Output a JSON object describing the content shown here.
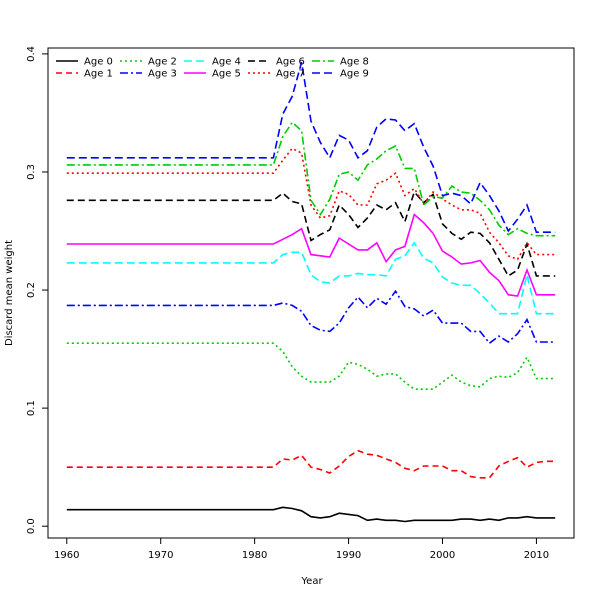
{
  "chart_data": {
    "type": "line",
    "title": "",
    "xlabel": "Year",
    "ylabel": "Discard mean weight",
    "xlim": [
      1958,
      2014
    ],
    "ylim": [
      -0.01,
      0.405
    ],
    "xticks": [
      1960,
      1970,
      1980,
      1990,
      2000,
      2010
    ],
    "xtick_labels": [
      "1960",
      "1970",
      "1980",
      "1990",
      "2000",
      "2010"
    ],
    "yticks": [
      0.0,
      0.1,
      0.2,
      0.3,
      0.4
    ],
    "ytick_labels": [
      "0.0",
      "0.1",
      "0.2",
      "0.3",
      "0.4"
    ],
    "grid": false,
    "legend_position": "top-left",
    "x": [
      1960,
      1961,
      1962,
      1963,
      1964,
      1965,
      1966,
      1967,
      1968,
      1969,
      1970,
      1971,
      1972,
      1973,
      1974,
      1975,
      1976,
      1977,
      1978,
      1979,
      1980,
      1981,
      1982,
      1983,
      1984,
      1985,
      1986,
      1987,
      1988,
      1989,
      1990,
      1991,
      1992,
      1993,
      1994,
      1995,
      1996,
      1997,
      1998,
      1999,
      2000,
      2001,
      2002,
      2003,
      2004,
      2005,
      2006,
      2007,
      2008,
      2009,
      2010,
      2011,
      2012
    ],
    "series": [
      {
        "name": "Age 0",
        "color": "#000000",
        "dash": "solid",
        "values": [
          0.014,
          0.014,
          0.014,
          0.014,
          0.014,
          0.014,
          0.014,
          0.014,
          0.014,
          0.014,
          0.014,
          0.014,
          0.014,
          0.014,
          0.014,
          0.014,
          0.014,
          0.014,
          0.014,
          0.014,
          0.014,
          0.014,
          0.014,
          0.016,
          0.015,
          0.013,
          0.008,
          0.007,
          0.008,
          0.011,
          0.01,
          0.009,
          0.005,
          0.006,
          0.005,
          0.005,
          0.004,
          0.005,
          0.005,
          0.005,
          0.005,
          0.005,
          0.006,
          0.006,
          0.005,
          0.006,
          0.005,
          0.007,
          0.007,
          0.008,
          0.007,
          0.007,
          0.007
        ]
      },
      {
        "name": "Age 1",
        "color": "#ff0000",
        "dash": "6,4",
        "values": [
          0.05,
          0.05,
          0.05,
          0.05,
          0.05,
          0.05,
          0.05,
          0.05,
          0.05,
          0.05,
          0.05,
          0.05,
          0.05,
          0.05,
          0.05,
          0.05,
          0.05,
          0.05,
          0.05,
          0.05,
          0.05,
          0.05,
          0.05,
          0.057,
          0.056,
          0.06,
          0.05,
          0.048,
          0.045,
          0.051,
          0.059,
          0.064,
          0.061,
          0.06,
          0.057,
          0.054,
          0.049,
          0.047,
          0.051,
          0.051,
          0.051,
          0.047,
          0.047,
          0.042,
          0.041,
          0.041,
          0.051,
          0.055,
          0.058,
          0.05,
          0.054,
          0.055,
          0.055
        ]
      },
      {
        "name": "Age 2",
        "color": "#00cd00",
        "dash": "2,3",
        "values": [
          0.155,
          0.155,
          0.155,
          0.155,
          0.155,
          0.155,
          0.155,
          0.155,
          0.155,
          0.155,
          0.155,
          0.155,
          0.155,
          0.155,
          0.155,
          0.155,
          0.155,
          0.155,
          0.155,
          0.155,
          0.155,
          0.155,
          0.155,
          0.148,
          0.135,
          0.127,
          0.122,
          0.122,
          0.122,
          0.127,
          0.139,
          0.137,
          0.133,
          0.127,
          0.129,
          0.129,
          0.122,
          0.116,
          0.116,
          0.116,
          0.122,
          0.128,
          0.122,
          0.119,
          0.118,
          0.125,
          0.127,
          0.126,
          0.13,
          0.143,
          0.125,
          0.125,
          0.125
        ]
      },
      {
        "name": "Age 3",
        "color": "#0000ff",
        "dash": "8,3,2,3",
        "values": [
          0.187,
          0.187,
          0.187,
          0.187,
          0.187,
          0.187,
          0.187,
          0.187,
          0.187,
          0.187,
          0.187,
          0.187,
          0.187,
          0.187,
          0.187,
          0.187,
          0.187,
          0.187,
          0.187,
          0.187,
          0.187,
          0.187,
          0.187,
          0.189,
          0.187,
          0.182,
          0.17,
          0.166,
          0.165,
          0.172,
          0.185,
          0.194,
          0.185,
          0.193,
          0.188,
          0.199,
          0.186,
          0.184,
          0.178,
          0.183,
          0.172,
          0.172,
          0.172,
          0.165,
          0.165,
          0.155,
          0.161,
          0.156,
          0.163,
          0.175,
          0.156,
          0.156,
          0.156
        ]
      },
      {
        "name": "Age 4",
        "color": "#00ffff",
        "dash": "8,4",
        "values": [
          0.223,
          0.223,
          0.223,
          0.223,
          0.223,
          0.223,
          0.223,
          0.223,
          0.223,
          0.223,
          0.223,
          0.223,
          0.223,
          0.223,
          0.223,
          0.223,
          0.223,
          0.223,
          0.223,
          0.223,
          0.223,
          0.223,
          0.223,
          0.23,
          0.232,
          0.232,
          0.213,
          0.207,
          0.206,
          0.212,
          0.212,
          0.214,
          0.213,
          0.213,
          0.212,
          0.226,
          0.229,
          0.24,
          0.227,
          0.223,
          0.211,
          0.206,
          0.204,
          0.204,
          0.197,
          0.189,
          0.18,
          0.18,
          0.18,
          0.213,
          0.18,
          0.18,
          0.18
        ]
      },
      {
        "name": "Age 5",
        "color": "#ff00ff",
        "dash": "solid",
        "values": [
          0.239,
          0.239,
          0.239,
          0.239,
          0.239,
          0.239,
          0.239,
          0.239,
          0.239,
          0.239,
          0.239,
          0.239,
          0.239,
          0.239,
          0.239,
          0.239,
          0.239,
          0.239,
          0.239,
          0.239,
          0.239,
          0.239,
          0.239,
          0.243,
          0.247,
          0.252,
          0.23,
          0.229,
          0.228,
          0.244,
          0.239,
          0.234,
          0.234,
          0.24,
          0.224,
          0.234,
          0.237,
          0.264,
          0.257,
          0.248,
          0.233,
          0.228,
          0.222,
          0.223,
          0.225,
          0.215,
          0.208,
          0.196,
          0.195,
          0.217,
          0.196,
          0.196,
          0.196
        ]
      },
      {
        "name": "Age 6",
        "color": "#000000",
        "dash": "7,4",
        "values": [
          0.276,
          0.276,
          0.276,
          0.276,
          0.276,
          0.276,
          0.276,
          0.276,
          0.276,
          0.276,
          0.276,
          0.276,
          0.276,
          0.276,
          0.276,
          0.276,
          0.276,
          0.276,
          0.276,
          0.276,
          0.276,
          0.276,
          0.276,
          0.282,
          0.275,
          0.273,
          0.242,
          0.247,
          0.251,
          0.272,
          0.264,
          0.253,
          0.261,
          0.272,
          0.268,
          0.274,
          0.258,
          0.283,
          0.274,
          0.281,
          0.256,
          0.248,
          0.243,
          0.249,
          0.248,
          0.24,
          0.226,
          0.212,
          0.217,
          0.239,
          0.212,
          0.212,
          0.212
        ]
      },
      {
        "name": "Age 7",
        "color": "#ff0000",
        "dash": "2,3",
        "values": [
          0.299,
          0.299,
          0.299,
          0.299,
          0.299,
          0.299,
          0.299,
          0.299,
          0.299,
          0.299,
          0.299,
          0.299,
          0.299,
          0.299,
          0.299,
          0.299,
          0.299,
          0.299,
          0.299,
          0.299,
          0.299,
          0.299,
          0.299,
          0.31,
          0.32,
          0.316,
          0.272,
          0.261,
          0.263,
          0.284,
          0.281,
          0.272,
          0.272,
          0.29,
          0.293,
          0.299,
          0.28,
          0.286,
          0.273,
          0.283,
          0.277,
          0.272,
          0.268,
          0.268,
          0.265,
          0.249,
          0.24,
          0.229,
          0.226,
          0.24,
          0.23,
          0.23,
          0.23
        ]
      },
      {
        "name": "Age 8",
        "color": "#00cd00",
        "dash": "8,3,2,3",
        "values": [
          0.306,
          0.306,
          0.306,
          0.306,
          0.306,
          0.306,
          0.306,
          0.306,
          0.306,
          0.306,
          0.306,
          0.306,
          0.306,
          0.306,
          0.306,
          0.306,
          0.306,
          0.306,
          0.306,
          0.306,
          0.306,
          0.306,
          0.306,
          0.33,
          0.342,
          0.335,
          0.276,
          0.264,
          0.277,
          0.298,
          0.3,
          0.293,
          0.306,
          0.311,
          0.318,
          0.322,
          0.303,
          0.303,
          0.272,
          0.279,
          0.278,
          0.288,
          0.283,
          0.282,
          0.276,
          0.268,
          0.255,
          0.247,
          0.252,
          0.248,
          0.246,
          0.246,
          0.246
        ]
      },
      {
        "name": "Age 9",
        "color": "#0000ff",
        "dash": "8,4",
        "values": [
          0.312,
          0.312,
          0.312,
          0.312,
          0.312,
          0.312,
          0.312,
          0.312,
          0.312,
          0.312,
          0.312,
          0.312,
          0.312,
          0.312,
          0.312,
          0.312,
          0.312,
          0.312,
          0.312,
          0.312,
          0.312,
          0.312,
          0.312,
          0.349,
          0.364,
          0.393,
          0.343,
          0.325,
          0.312,
          0.331,
          0.327,
          0.312,
          0.318,
          0.338,
          0.345,
          0.344,
          0.335,
          0.341,
          0.321,
          0.305,
          0.28,
          0.282,
          0.28,
          0.273,
          0.291,
          0.28,
          0.267,
          0.25,
          0.26,
          0.272,
          0.249,
          0.249,
          0.249
        ]
      }
    ]
  }
}
